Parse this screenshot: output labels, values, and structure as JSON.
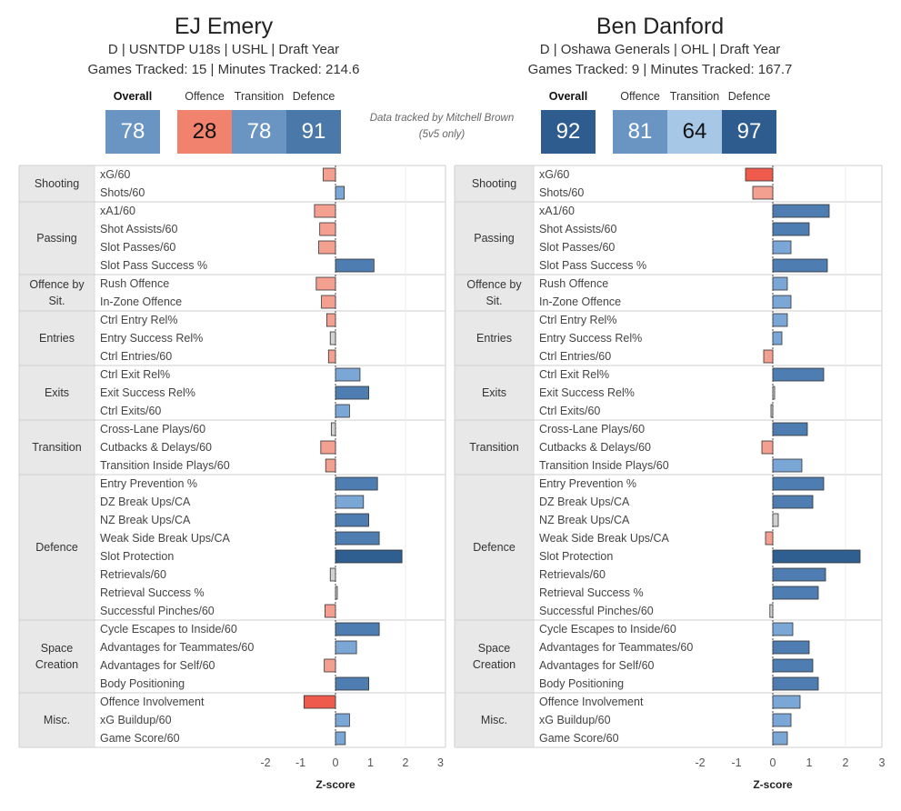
{
  "note": {
    "line1": "Data tracked by Mitchell Brown",
    "line2": "(5v5 only)"
  },
  "score_labels": {
    "overall": "Overall",
    "offence": "Offence",
    "transition": "Transition",
    "defence": "Defence"
  },
  "players": [
    {
      "name": "EJ Emery",
      "meta1": "D | USNTDP U18s | USHL | Draft Year",
      "meta2": "Games Tracked: 15 | Minutes Tracked: 214.6",
      "scores": {
        "overall": "78",
        "offence": "28",
        "transition": "78",
        "defence": "91"
      },
      "score_colors": {
        "overall": "#6a95c3",
        "offence": "#f0826e",
        "transition": "#6a95c3",
        "defence": "#4a78a8"
      },
      "score_text_colors": {
        "overall": "#ffffff",
        "offence": "#111111",
        "transition": "#ffffff",
        "defence": "#ffffff"
      }
    },
    {
      "name": "Ben Danford",
      "meta1": "D | Oshawa Generals | OHL | Draft Year",
      "meta2": "Games Tracked: 9 | Minutes Tracked: 167.7",
      "scores": {
        "overall": "92",
        "offence": "81",
        "transition": "64",
        "defence": "97"
      },
      "score_colors": {
        "overall": "#2e5c8f",
        "offence": "#6a95c3",
        "transition": "#a7c7e6",
        "defence": "#2e5c8f"
      },
      "score_text_colors": {
        "overall": "#ffffff",
        "offence": "#ffffff",
        "transition": "#111111",
        "defence": "#ffffff"
      }
    }
  ],
  "categories": [
    {
      "name": "Shooting",
      "metrics": [
        "xG/60",
        "Shots/60"
      ]
    },
    {
      "name": "Passing",
      "metrics": [
        "xA1/60",
        "Shot Assists/60",
        "Slot Passes/60",
        "Slot Pass Success %"
      ]
    },
    {
      "name": "Offence by Sit.",
      "metrics": [
        "Rush Offence",
        "In-Zone Offence"
      ]
    },
    {
      "name": "Entries",
      "metrics": [
        "Ctrl Entry Rel%",
        "Entry Success Rel%",
        "Ctrl Entries/60"
      ]
    },
    {
      "name": "Exits",
      "metrics": [
        "Ctrl Exit Rel%",
        "Exit Success Rel%",
        "Ctrl Exits/60"
      ]
    },
    {
      "name": "Transition",
      "metrics": [
        "Cross-Lane Plays/60",
        "Cutbacks & Delays/60",
        "Transition Inside Plays/60"
      ]
    },
    {
      "name": "Defence",
      "metrics": [
        "Entry Prevention %",
        "DZ Break Ups/CA",
        "NZ Break Ups/CA",
        "Weak Side Break Ups/CA",
        "Slot Protection",
        "Retrievals/60",
        "Retrieval Success %",
        "Successful Pinches/60"
      ]
    },
    {
      "name": "Space Creation",
      "metrics": [
        "Cycle Escapes to Inside/60",
        "Advantages for Teammates/60",
        "Advantages for Self/60",
        "Body Positioning"
      ]
    },
    {
      "name": "Misc.",
      "metrics": [
        "Offence Involvement",
        "xG Buildup/60",
        "Game Score/60"
      ]
    }
  ],
  "chart_data": [
    {
      "type": "bar",
      "orientation": "horizontal",
      "player": "EJ Emery",
      "categories": [
        "xG/60",
        "Shots/60",
        "xA1/60",
        "Shot Assists/60",
        "Slot Passes/60",
        "Slot Pass Success %",
        "Rush Offence",
        "In-Zone Offence",
        "Ctrl Entry Rel%",
        "Entry Success Rel%",
        "Ctrl Entries/60",
        "Ctrl Exit Rel%",
        "Exit Success Rel%",
        "Ctrl Exits/60",
        "Cross-Lane Plays/60",
        "Cutbacks & Delays/60",
        "Transition Inside Plays/60",
        "Entry Prevention %",
        "DZ Break Ups/CA",
        "NZ Break Ups/CA",
        "Weak Side Break Ups/CA",
        "Slot Protection",
        "Retrievals/60",
        "Retrieval Success %",
        "Successful Pinches/60",
        "Cycle Escapes to Inside/60",
        "Advantages for Teammates/60",
        "Advantages for Self/60",
        "Body Positioning",
        "Offence Involvement",
        "xG Buildup/60",
        "Game Score/60"
      ],
      "values": [
        -0.35,
        0.25,
        -0.6,
        -0.45,
        -0.48,
        1.1,
        -0.55,
        -0.4,
        -0.25,
        -0.15,
        -0.2,
        0.7,
        0.95,
        0.4,
        -0.12,
        -0.42,
        -0.28,
        1.2,
        0.8,
        0.95,
        1.25,
        1.9,
        -0.15,
        0.05,
        -0.3,
        1.25,
        0.6,
        -0.32,
        0.95,
        -0.9,
        0.4,
        0.28
      ],
      "xlabel": "Z-score",
      "xlim": [
        -2,
        3
      ],
      "xticks": [
        -2,
        -1,
        0,
        1,
        2,
        3
      ]
    },
    {
      "type": "bar",
      "orientation": "horizontal",
      "player": "Ben Danford",
      "categories": [
        "xG/60",
        "Shots/60",
        "xA1/60",
        "Shot Assists/60",
        "Slot Passes/60",
        "Slot Pass Success %",
        "Rush Offence",
        "In-Zone Offence",
        "Ctrl Entry Rel%",
        "Entry Success Rel%",
        "Ctrl Entries/60",
        "Ctrl Exit Rel%",
        "Exit Success Rel%",
        "Ctrl Exits/60",
        "Cross-Lane Plays/60",
        "Cutbacks & Delays/60",
        "Transition Inside Plays/60",
        "Entry Prevention %",
        "DZ Break Ups/CA",
        "NZ Break Ups/CA",
        "Weak Side Break Ups/CA",
        "Slot Protection",
        "Retrievals/60",
        "Retrieval Success %",
        "Successful Pinches/60",
        "Cycle Escapes to Inside/60",
        "Advantages for Teammates/60",
        "Advantages for Self/60",
        "Body Positioning",
        "Offence Involvement",
        "xG Buildup/60",
        "Game Score/60"
      ],
      "values": [
        -0.75,
        -0.55,
        1.55,
        1.0,
        0.5,
        1.5,
        0.4,
        0.5,
        0.4,
        0.25,
        -0.25,
        1.4,
        0.05,
        -0.05,
        0.95,
        -0.3,
        0.8,
        1.4,
        1.1,
        0.15,
        -0.2,
        2.4,
        1.45,
        1.25,
        -0.08,
        0.55,
        1.0,
        1.1,
        1.25,
        0.75,
        0.5,
        0.4
      ],
      "xlabel": "Z-score",
      "xlim": [
        -2,
        3
      ],
      "xticks": [
        -2,
        -1,
        0,
        1,
        2,
        3
      ]
    }
  ]
}
